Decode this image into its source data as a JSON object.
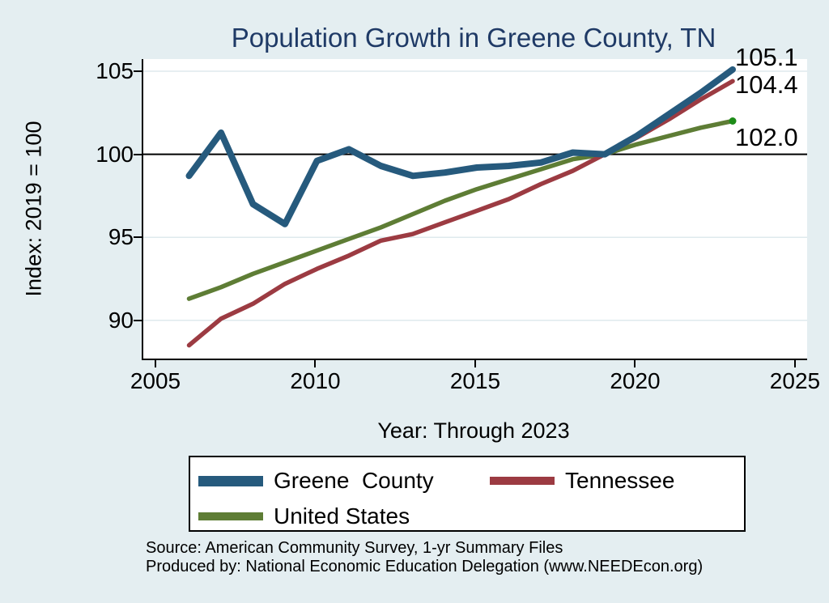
{
  "figure": {
    "title": "Population Growth in Greene County, TN",
    "y_axis_title": "Index: 2019 = 100",
    "x_axis_title": "Year: Through 2023",
    "source_line1": "Source: American Community Survey, 1-yr Summary Files",
    "source_line2": "Produced by: National Economic Education Delegation (www.NEEDEcon.org)"
  },
  "colors": {
    "background": "#e4eef1",
    "plot-background": "#ffffff",
    "title-text": "#1f3a66",
    "axis-text": "#000000",
    "gridline": "#dfeaed"
  },
  "chart_data": {
    "type": "line",
    "title": "Population Growth in Greene County, TN",
    "xlabel": "Year: Through 2023",
    "ylabel": "Index: 2019 = 100",
    "x": [
      2006,
      2007,
      2008,
      2009,
      2010,
      2011,
      2012,
      2013,
      2014,
      2015,
      2016,
      2017,
      2018,
      2019,
      2020,
      2021,
      2022,
      2023
    ],
    "series": [
      {
        "name": "Greene  County",
        "color": "#265a7d",
        "width": 8,
        "values": [
          98.7,
          101.3,
          97.0,
          95.8,
          99.6,
          100.3,
          99.3,
          98.7,
          98.9,
          99.2,
          99.3,
          99.5,
          100.1,
          100.0,
          101.1,
          102.4,
          103.7,
          105.1
        ],
        "end_label": "105.1"
      },
      {
        "name": "Tennessee",
        "color": "#9c3b42",
        "width": 5.5,
        "values": [
          88.5,
          90.1,
          91.0,
          92.2,
          93.1,
          93.9,
          94.8,
          95.2,
          95.9,
          96.6,
          97.3,
          98.2,
          99.0,
          100.0,
          101.0,
          102.1,
          103.3,
          104.4
        ],
        "end_label": "104.4"
      },
      {
        "name": "United States",
        "color": "#5e7d35",
        "width": 5.5,
        "values": [
          91.3,
          92.0,
          92.8,
          93.5,
          94.2,
          94.9,
          95.6,
          96.4,
          97.2,
          97.9,
          98.5,
          99.1,
          99.7,
          100.0,
          100.6,
          101.1,
          101.6,
          102.0
        ],
        "end_label": "102.0",
        "end_marker": true,
        "end_marker_color": "#1d8c18"
      }
    ],
    "xlim": [
      2004.57,
      2025.33
    ],
    "ylim": [
      87.7,
      105.73
    ],
    "x_ticks": [
      2005,
      2010,
      2015,
      2020,
      2025
    ],
    "y_ticks": [
      90,
      95,
      100,
      105
    ],
    "reference_line_y": 100,
    "grid": true,
    "legend_position": "bottom"
  }
}
